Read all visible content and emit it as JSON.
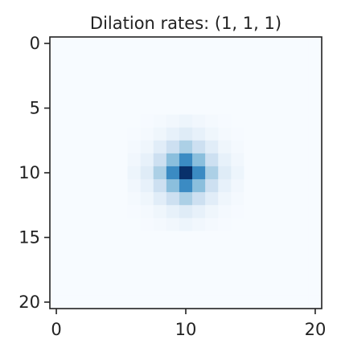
{
  "chart_data": {
    "type": "heatmap",
    "title": "Dilation rates: (1, 1, 1)",
    "xlabel": "",
    "ylabel": "",
    "colormap": "Blues",
    "grid_size": 21,
    "value_range": [
      0,
      1
    ],
    "xlim": [
      -0.5,
      20.5
    ],
    "ylim": [
      20.5,
      -0.5
    ],
    "xticks": [
      0,
      10,
      20
    ],
    "yticks": [
      0,
      5,
      10,
      15,
      20
    ],
    "xtick_labels": [
      "0",
      "10",
      "20"
    ],
    "ytick_labels": [
      "0",
      "5",
      "10",
      "15",
      "20"
    ],
    "grid": false,
    "center_cell": [
      10,
      10
    ],
    "kernel_1d": [
      0.05,
      0.12,
      0.33,
      0.65,
      1.0,
      0.65,
      0.33,
      0.12,
      0.05
    ],
    "kernel_center_offset": 4
  },
  "colors": {
    "colormap_low": "#f7fbff",
    "colormap_high": "#08306b",
    "axis": "#222222",
    "text": "#222222"
  }
}
